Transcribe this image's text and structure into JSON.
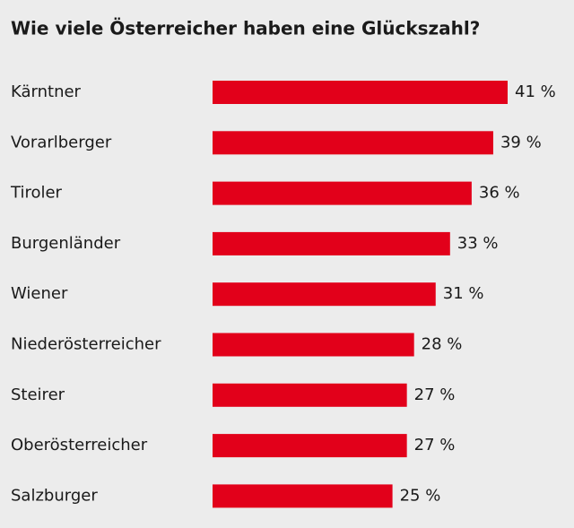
{
  "chart_data": {
    "type": "bar",
    "orientation": "horizontal",
    "title": "Wie viele Österreicher haben eine Glückszahl?",
    "categories": [
      "Kärntner",
      "Vorarlberger",
      "Tiroler",
      "Burgenländer",
      "Wiener",
      "Niederösterreicher",
      "Steirer",
      "Oberösterreicher",
      "Salzburger"
    ],
    "values": [
      41,
      39,
      36,
      33,
      31,
      28,
      27,
      27,
      25
    ],
    "value_labels": [
      "41 %",
      "39 %",
      "36 %",
      "33 %",
      "31 %",
      "28 %",
      "27 %",
      "27 %",
      "25 %"
    ],
    "color": "#e2001a"
  }
}
